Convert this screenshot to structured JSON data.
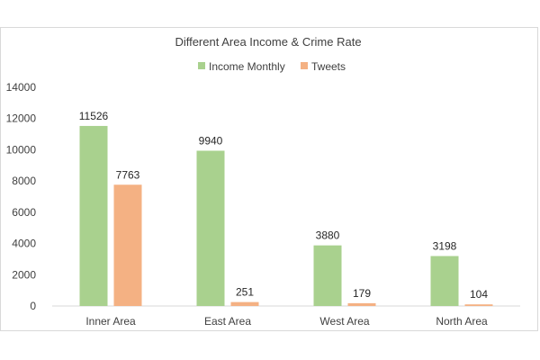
{
  "chart_data": {
    "type": "bar",
    "title": "Different Area Income & Crime Rate",
    "xlabel": "",
    "ylabel": "",
    "categories": [
      "Inner Area",
      "East Area",
      "West Area",
      "North Area"
    ],
    "series": [
      {
        "name": "Income Monthly",
        "values": [
          11526,
          9940,
          3880,
          3198
        ],
        "color": "#a9d18e"
      },
      {
        "name": "Tweets",
        "values": [
          7763,
          251,
          179,
          104
        ],
        "color": "#f4b183"
      }
    ],
    "ylim": [
      0,
      14000
    ],
    "yticks": [
      "0",
      "2000",
      "4000",
      "6000",
      "8000",
      "10000",
      "12000",
      "14000"
    ],
    "grid": false,
    "legend_position": "top",
    "data_labels": true
  }
}
